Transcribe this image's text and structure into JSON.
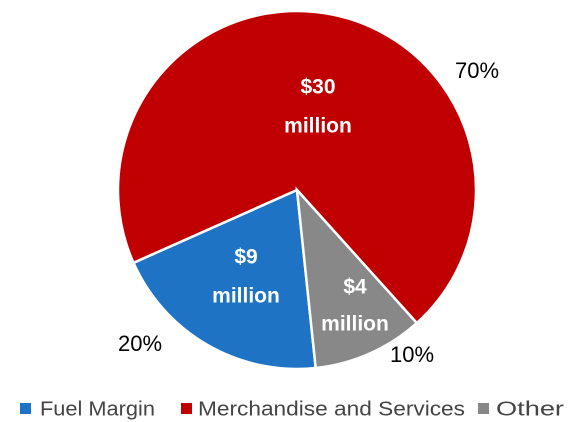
{
  "chart_data": {
    "type": "pie",
    "categories": [
      "Fuel Margin",
      "Merchandise and Services",
      "Other"
    ],
    "values": [
      20,
      70,
      10
    ],
    "value_labels": [
      "20%",
      "70%",
      "10%"
    ],
    "inner_labels": [
      [
        "$9",
        "million"
      ],
      [
        "$30",
        "million"
      ],
      [
        "$4",
        "million"
      ]
    ],
    "colors": [
      "#1f73c4",
      "#c00000",
      "#888888"
    ],
    "legend": "bottom"
  }
}
